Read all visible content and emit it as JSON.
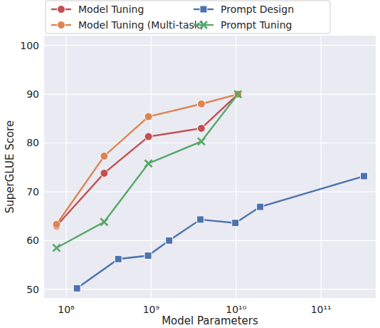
{
  "chart_data": {
    "type": "line",
    "x_label": "Model Parameters",
    "y_label": "SuperGLUE Score",
    "log": "x",
    "grid": true,
    "legend": "top",
    "xlim": [
      55000000,
      440000000000
    ],
    "ylim": [
      48.2,
      102
    ],
    "xticks": [
      {
        "value": 100000000,
        "label": "10⁸"
      },
      {
        "value": 1000000000,
        "label": "10⁹"
      },
      {
        "value": 10000000000,
        "label": "10¹⁰"
      },
      {
        "value": 100000000000,
        "label": "10¹¹"
      }
    ],
    "yticks": [
      50,
      60,
      70,
      80,
      90,
      100
    ],
    "series": [
      {
        "name": "Model Tuning",
        "color": "#c44e52",
        "marker": "circle",
        "line_style": "solid",
        "x": [
          77000000,
          280000000,
          930000000,
          3900000000,
          10500000000
        ],
        "values": [
          63.0,
          73.8,
          81.3,
          83.0,
          90.0
        ]
      },
      {
        "name": "Model Tuning (Multi-task)",
        "color": "#dd8452",
        "marker": "circle",
        "line_style": "solid",
        "x": [
          77000000,
          280000000,
          930000000,
          3900000000,
          10500000000
        ],
        "values": [
          63.3,
          77.3,
          85.4,
          88.0,
          90.0
        ]
      },
      {
        "name": "Prompt Design",
        "color": "#4c72b0",
        "marker": "square",
        "line_style": "solid",
        "x": [
          134000000,
          410000000,
          920000000,
          1630000000,
          3800000000,
          9800000000,
          19200000000,
          320000000000
        ],
        "values": [
          50.2,
          56.2,
          56.9,
          60.0,
          64.3,
          63.6,
          66.9,
          73.2
        ]
      },
      {
        "name": "Prompt Tuning",
        "color": "#55a868",
        "marker": "x",
        "line_style": "solid",
        "x": [
          77000000,
          280000000,
          930000000,
          3900000000,
          10500000000
        ],
        "values": [
          58.5,
          63.8,
          75.8,
          80.3,
          90.0
        ]
      }
    ]
  }
}
